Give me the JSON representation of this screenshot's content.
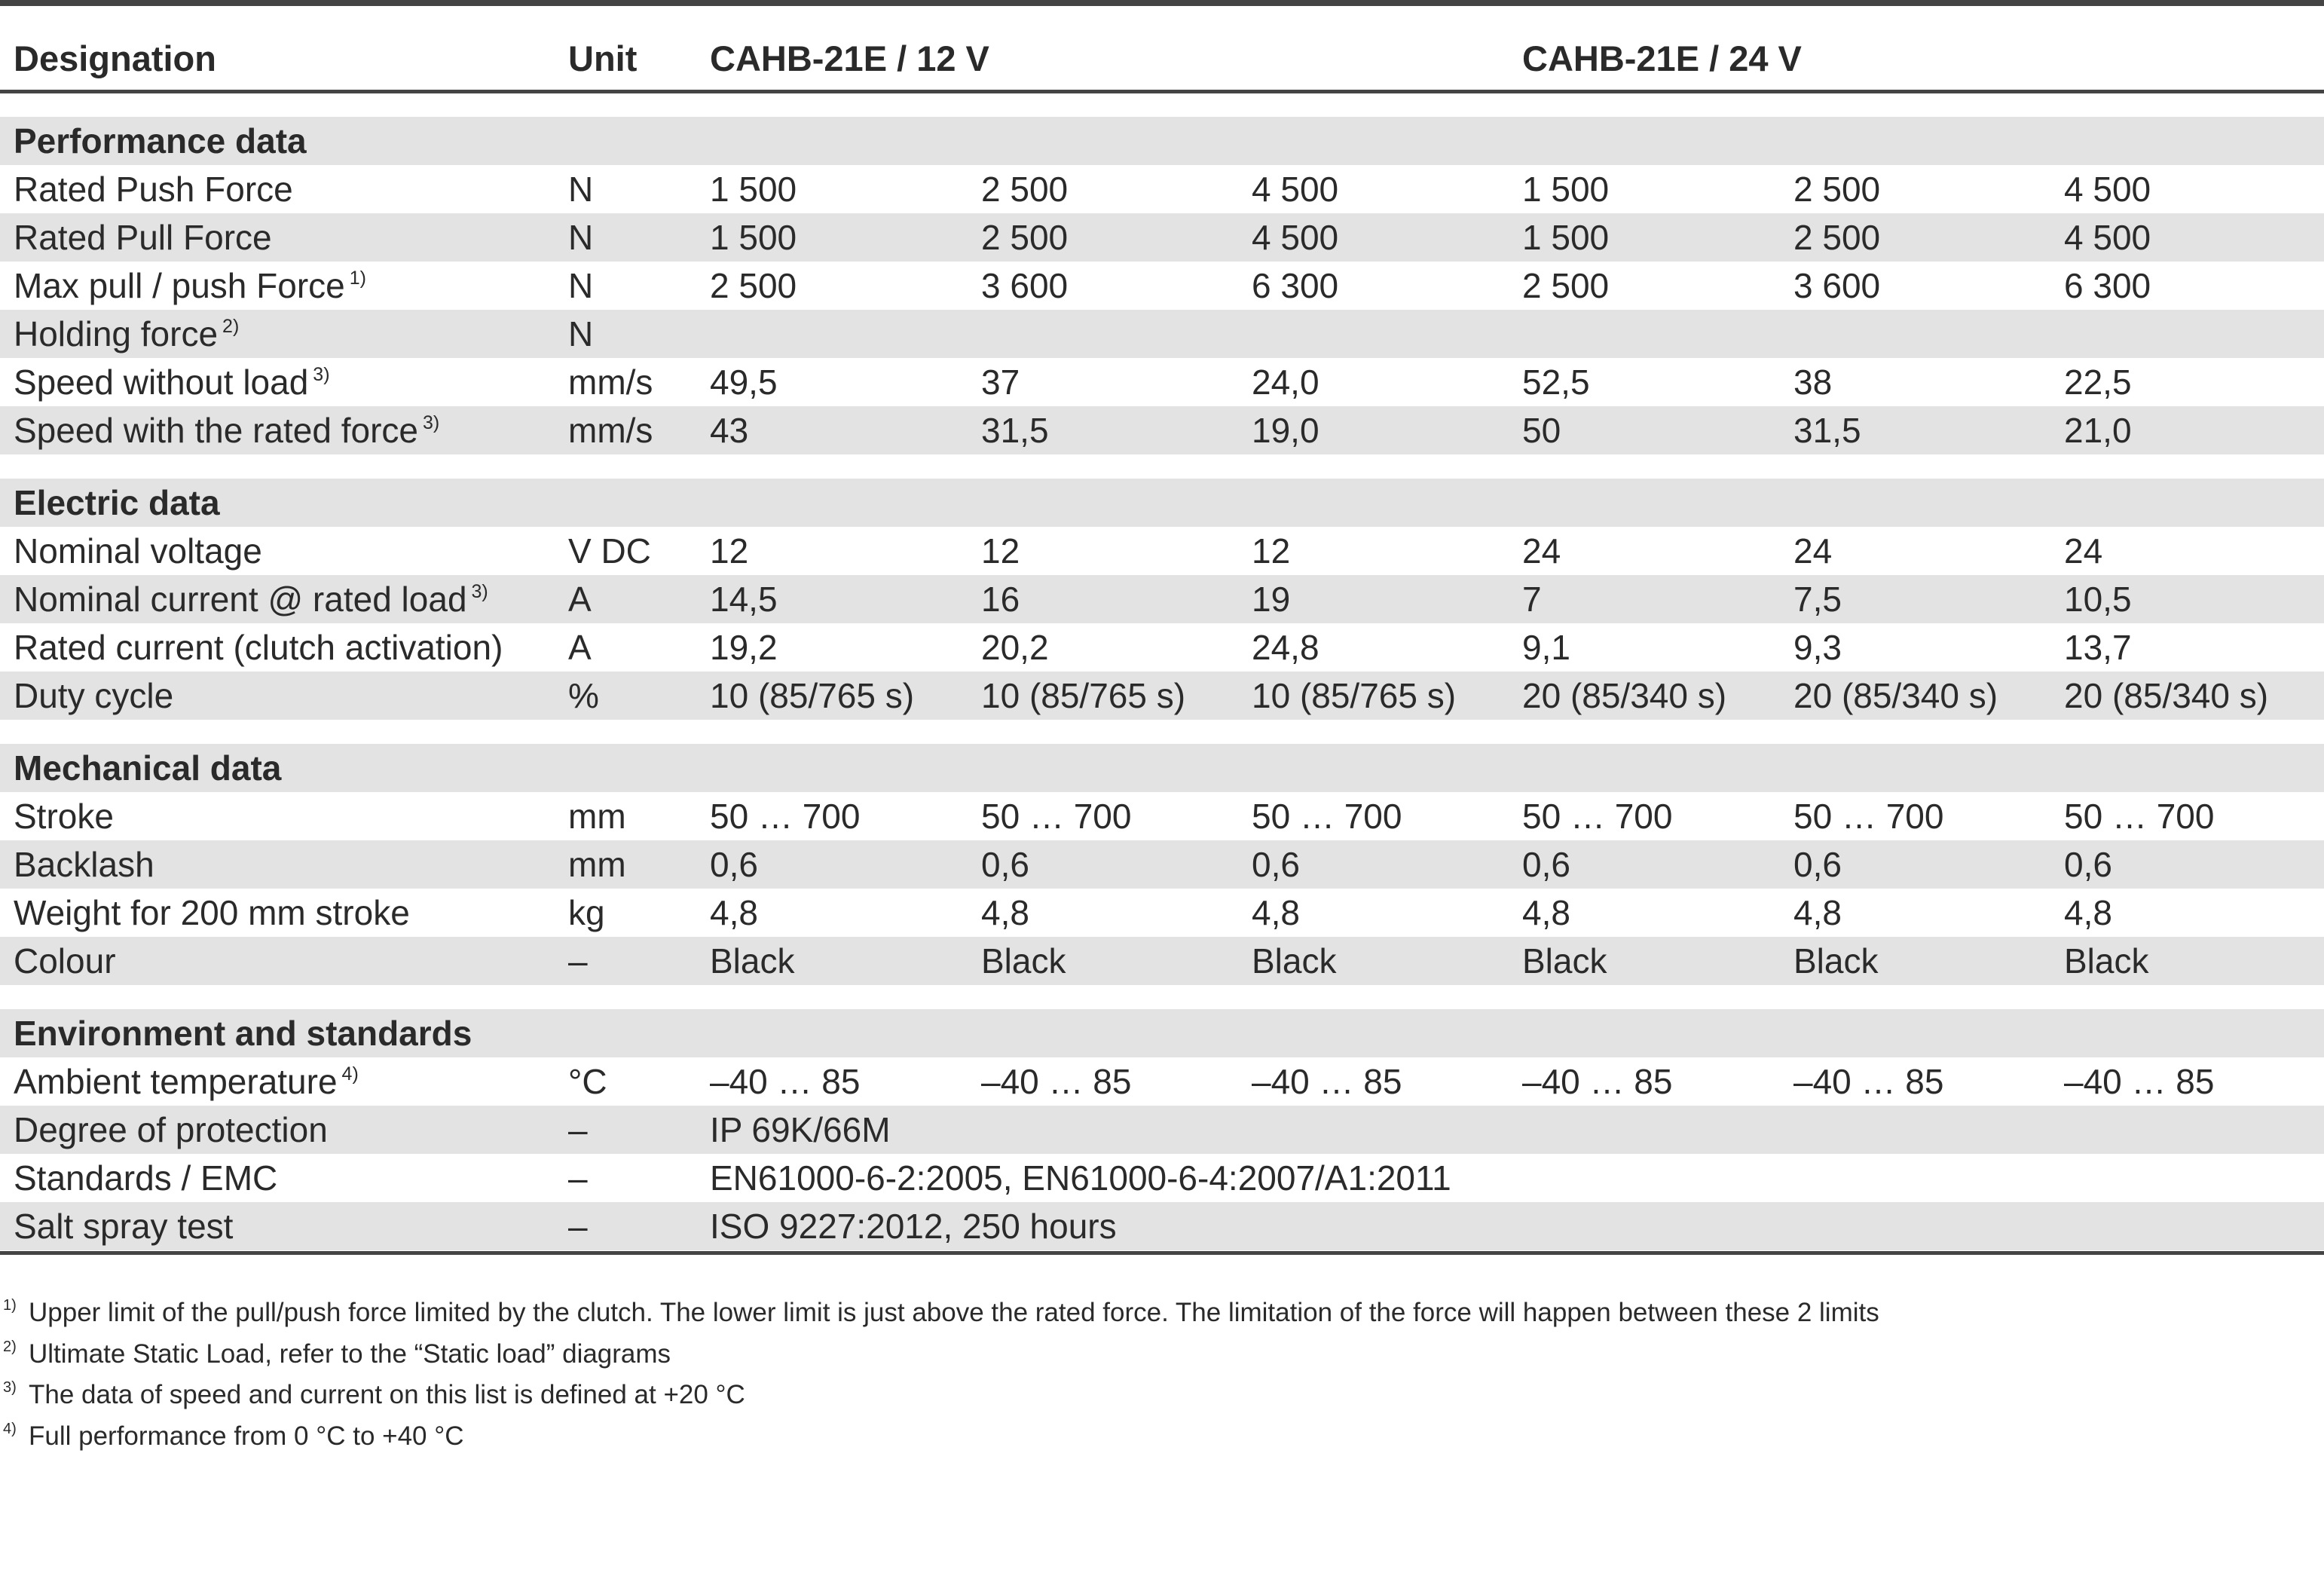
{
  "header": {
    "designation": "Designation",
    "unit": "Unit",
    "group_12v": "CAHB-21E / 12 V",
    "group_24v": "CAHB-21E / 24 V"
  },
  "sections": [
    {
      "title": "Performance data",
      "rows": [
        {
          "label": "Rated Push Force",
          "note": "",
          "unit": "N",
          "values": [
            "1 500",
            "2 500",
            "4 500",
            "1 500",
            "2 500",
            "4 500"
          ]
        },
        {
          "label": "Rated Pull Force",
          "note": "",
          "unit": "N",
          "values": [
            "1 500",
            "2 500",
            "4 500",
            "1 500",
            "2 500",
            "4 500"
          ]
        },
        {
          "label": "Max pull / push Force",
          "note": "1)",
          "unit": "N",
          "values": [
            "2 500",
            "3 600",
            "6 300",
            "2 500",
            "3 600",
            "6 300"
          ]
        },
        {
          "label": "Holding force",
          "note": "2)",
          "unit": "N",
          "values": [
            "",
            "",
            "",
            "",
            "",
            ""
          ]
        },
        {
          "label": "Speed without load",
          "note": "3)",
          "unit": "mm/s",
          "values": [
            "49,5",
            "37",
            "24,0",
            "52,5",
            "38",
            "22,5"
          ]
        },
        {
          "label": "Speed with the rated force",
          "note": "3)",
          "unit": "mm/s",
          "values": [
            "43",
            "31,5",
            "19,0",
            "50",
            "31,5",
            "21,0"
          ]
        }
      ]
    },
    {
      "title": "Electric data",
      "rows": [
        {
          "label": "Nominal voltage",
          "note": "",
          "unit": "V DC",
          "values": [
            "12",
            "12",
            "12",
            "24",
            "24",
            "24"
          ]
        },
        {
          "label": "Nominal current @ rated load",
          "note": "3)",
          "unit": "A",
          "values": [
            "14,5",
            "16",
            "19",
            "7",
            "7,5",
            "10,5"
          ]
        },
        {
          "label": "Rated current (clutch activation)",
          "note": "",
          "unit": "A",
          "values": [
            "19,2",
            "20,2",
            "24,8",
            "9,1",
            "9,3",
            "13,7"
          ]
        },
        {
          "label": "Duty cycle",
          "note": "",
          "unit": "%",
          "values": [
            "10 (85/765 s)",
            "10 (85/765 s)",
            "10 (85/765 s)",
            "20 (85/340 s)",
            "20 (85/340 s)",
            "20 (85/340 s)"
          ]
        }
      ]
    },
    {
      "title": "Mechanical data",
      "rows": [
        {
          "label": "Stroke",
          "note": "",
          "unit": "mm",
          "values": [
            "50 … 700",
            "50 … 700",
            "50 … 700",
            "50 … 700",
            "50 … 700",
            "50 … 700"
          ]
        },
        {
          "label": "Backlash",
          "note": "",
          "unit": "mm",
          "values": [
            "0,6",
            "0,6",
            "0,6",
            "0,6",
            "0,6",
            "0,6"
          ]
        },
        {
          "label": "Weight for 200 mm stroke",
          "note": "",
          "unit": "kg",
          "values": [
            "4,8",
            "4,8",
            "4,8",
            "4,8",
            "4,8",
            "4,8"
          ]
        },
        {
          "label": "Colour",
          "note": "",
          "unit": "–",
          "values": [
            "Black",
            "Black",
            "Black",
            "Black",
            "Black",
            "Black"
          ]
        }
      ]
    },
    {
      "title": "Environment and standards",
      "rows": [
        {
          "label": "Ambient temperature",
          "note": "4)",
          "unit": "°C",
          "values": [
            "–40 … 85",
            "–40 … 85",
            "–40 … 85",
            "–40 … 85",
            "–40 … 85",
            "–40 … 85"
          ]
        },
        {
          "label": "Degree of protection",
          "note": "",
          "unit": "–",
          "values": [
            "IP 69K/66M"
          ]
        },
        {
          "label": "Standards / EMC",
          "note": "",
          "unit": "–",
          "values": [
            "EN61000-6-2:2005, EN61000-6-4:2007/A1:2011"
          ]
        },
        {
          "label": "Salt spray test",
          "note": "",
          "unit": "–",
          "values": [
            "ISO 9227:2012, 250 hours"
          ]
        }
      ]
    }
  ],
  "footnotes": [
    {
      "mark": "1)",
      "text": "Upper limit of the pull/push force limited by the clutch. The lower limit is just above the rated force. The limitation of the force will happen between these 2 limits"
    },
    {
      "mark": "2)",
      "text": "Ultimate Static Load, refer to the “Static load” diagrams"
    },
    {
      "mark": "3)",
      "text": "The data of speed and current on this list  is defined at +20 °C"
    },
    {
      "mark": "4)",
      "text": "Full performance from 0 °C to +40 °C"
    }
  ],
  "colors": {
    "row_shade": "#e3e3e3",
    "rule": "#444444",
    "text": "#2a2a2a"
  }
}
